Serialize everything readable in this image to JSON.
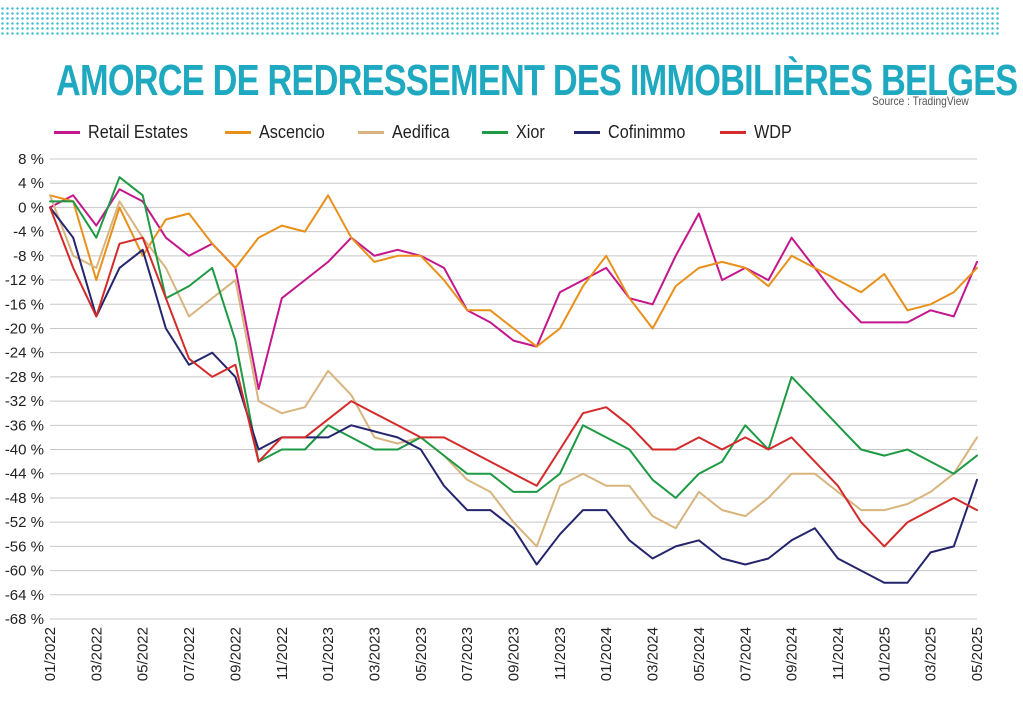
{
  "header": {
    "title": "AMORCE DE REDRESSEMENT DES IMMOBILIÈRES BELGES",
    "source": "Source : TradingView"
  },
  "chart_data": {
    "type": "line",
    "title": "AMORCE DE REDRESSEMENT DES IMMOBILIÈRES BELGES",
    "xlabel": "",
    "ylabel": "",
    "ylim": [
      -68,
      8
    ],
    "y_ticks": [
      "8 %",
      "4 %",
      "0 %",
      "-4 %",
      "-8 %",
      "-12 %",
      "-16 %",
      "-20 %",
      "-24 %",
      "-28 %",
      "-32 %",
      "-36 %",
      "-40 %",
      "-44 %",
      "-48 %",
      "-52 %",
      "-56 %",
      "-60 %",
      "-64 %",
      "-68 %"
    ],
    "y_tick_values": [
      8,
      4,
      0,
      -4,
      -8,
      -12,
      -16,
      -20,
      -24,
      -28,
      -32,
      -36,
      -40,
      -44,
      -48,
      -52,
      -56,
      -60,
      -64,
      -68
    ],
    "x_ticks": [
      "01/2022",
      "03/2022",
      "05/2022",
      "07/2022",
      "09/2022",
      "11/2022",
      "01/2023",
      "03/2023",
      "05/2023",
      "07/2023",
      "09/2023",
      "11/2023",
      "01/2024",
      "03/2024",
      "05/2024",
      "07/2024",
      "09/2024",
      "11/2024",
      "01/2025",
      "03/2025",
      "05/2025"
    ],
    "x": [
      "2022-01",
      "2022-02",
      "2022-03",
      "2022-04",
      "2022-05",
      "2022-06",
      "2022-07",
      "2022-08",
      "2022-09",
      "2022-10",
      "2022-11",
      "2022-12",
      "2023-01",
      "2023-02",
      "2023-03",
      "2023-04",
      "2023-05",
      "2023-06",
      "2023-07",
      "2023-08",
      "2023-09",
      "2023-10",
      "2023-11",
      "2023-12",
      "2024-01",
      "2024-02",
      "2024-03",
      "2024-04",
      "2024-05",
      "2024-06",
      "2024-07",
      "2024-08",
      "2024-09",
      "2024-10",
      "2024-11",
      "2024-12",
      "2025-01",
      "2025-02",
      "2025-03",
      "2025-04",
      "2025-05"
    ],
    "grid": true,
    "legend_position": "top-left",
    "series": [
      {
        "name": "Retail Estates",
        "color": "#c4168d",
        "values": [
          0,
          2,
          -3,
          3,
          1,
          -5,
          -8,
          -6,
          -10,
          -30,
          -15,
          -12,
          -9,
          -5,
          -8,
          -7,
          -8,
          -10,
          -17,
          -19,
          -22,
          -23,
          -14,
          -12,
          -10,
          -15,
          -16,
          -8,
          -1,
          -12,
          -10,
          -12,
          -5,
          -10,
          -15,
          -19,
          -19,
          -19,
          -17,
          -18,
          -9
        ]
      },
      {
        "name": "Ascencio",
        "color": "#e8901a",
        "values": [
          2,
          1,
          -12,
          0,
          -8,
          -2,
          -1,
          -6,
          -10,
          -5,
          -3,
          -4,
          2,
          -5,
          -9,
          -8,
          -8,
          -12,
          -17,
          -17,
          -20,
          -23,
          -20,
          -13,
          -8,
          -15,
          -20,
          -13,
          -10,
          -9,
          -10,
          -13,
          -8,
          -10,
          -12,
          -14,
          -11,
          -17,
          -16,
          -14,
          -10
        ]
      },
      {
        "name": "Aedifica",
        "color": "#d8b47e",
        "values": [
          2,
          -8,
          -10,
          1,
          -5,
          -10,
          -18,
          -15,
          -12,
          -32,
          -34,
          -33,
          -27,
          -31,
          -38,
          -39,
          -38,
          -41,
          -45,
          -47,
          -52,
          -56,
          -46,
          -44,
          -46,
          -46,
          -51,
          -53,
          -47,
          -50,
          -51,
          -48,
          -44,
          -44,
          -47,
          -50,
          -50,
          -49,
          -47,
          -44,
          -38
        ]
      },
      {
        "name": "Xior",
        "color": "#1e9a44",
        "values": [
          1,
          1,
          -5,
          5,
          2,
          -15,
          -13,
          -10,
          -22,
          -42,
          -40,
          -40,
          -36,
          -38,
          -40,
          -40,
          -38,
          -41,
          -44,
          -44,
          -47,
          -47,
          -44,
          -36,
          -38,
          -40,
          -45,
          -48,
          -44,
          -42,
          -36,
          -40,
          -28,
          -32,
          -36,
          -40,
          -41,
          -40,
          -42,
          -44,
          -41
        ]
      },
      {
        "name": "Cofinimmo",
        "color": "#25256e",
        "values": [
          0,
          -5,
          -18,
          -10,
          -7,
          -20,
          -26,
          -24,
          -28,
          -40,
          -38,
          -38,
          -38,
          -36,
          -37,
          -38,
          -40,
          -46,
          -50,
          -50,
          -53,
          -59,
          -54,
          -50,
          -50,
          -55,
          -58,
          -56,
          -55,
          -58,
          -59,
          -58,
          -55,
          -53,
          -58,
          -60,
          -62,
          -62,
          -57,
          -56,
          -45
        ]
      },
      {
        "name": "WDP",
        "color": "#d42a2a",
        "values": [
          0,
          -10,
          -18,
          -6,
          -5,
          -15,
          -25,
          -28,
          -26,
          -42,
          -38,
          -38,
          -35,
          -32,
          -34,
          -36,
          -38,
          -38,
          -40,
          -42,
          -44,
          -46,
          -40,
          -34,
          -33,
          -36,
          -40,
          -40,
          -38,
          -40,
          -38,
          -40,
          -38,
          -42,
          -46,
          -52,
          -56,
          -52,
          -50,
          -48,
          -50
        ]
      }
    ]
  }
}
